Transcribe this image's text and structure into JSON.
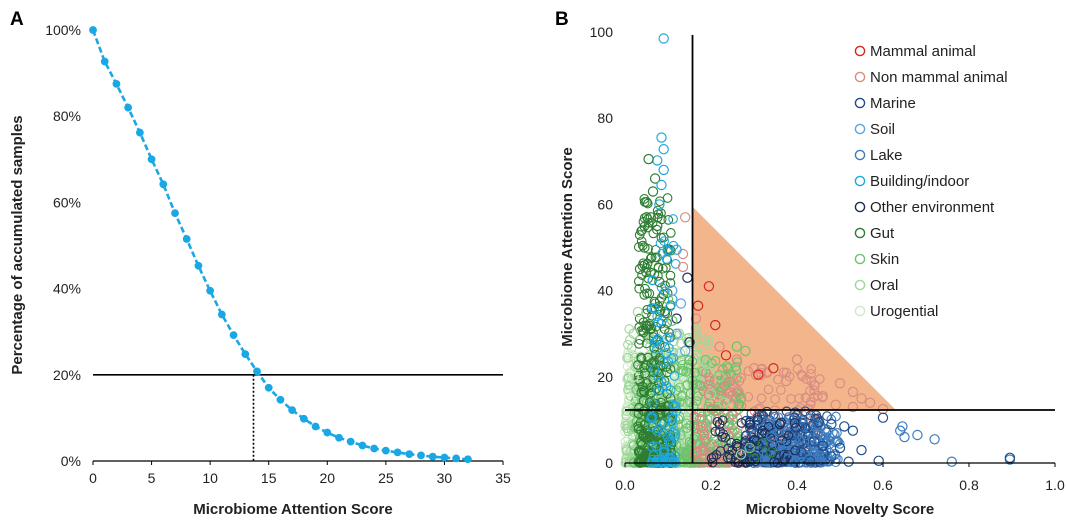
{
  "chart_data": [
    {
      "panel": "A",
      "type": "line",
      "xlabel": "Microbiome Attention Score",
      "ylabel": "Percentage of accumulated samples",
      "xlim": [
        0,
        35
      ],
      "ylim": [
        0,
        100
      ],
      "xticks": [
        "0",
        "5",
        "10",
        "15",
        "20",
        "25",
        "30",
        "35"
      ],
      "yticks": [
        "0%",
        "20%",
        "40%",
        "60%",
        "80%",
        "100%"
      ],
      "color": "#1aa7e6",
      "x": [
        0,
        1,
        2,
        3,
        4,
        5,
        6,
        7,
        8,
        9,
        10,
        11,
        12,
        13,
        14,
        15,
        16,
        17,
        18,
        19,
        20,
        21,
        22,
        23,
        24,
        25,
        26,
        27,
        28,
        29,
        30,
        31,
        32
      ],
      "y": [
        100,
        92.7,
        87.5,
        82.0,
        76.2,
        70.0,
        64.2,
        57.5,
        51.5,
        45.3,
        39.5,
        34.0,
        29.2,
        24.8,
        20.8,
        17.0,
        14.2,
        11.8,
        9.8,
        8.0,
        6.6,
        5.4,
        4.5,
        3.6,
        2.9,
        2.4,
        2.0,
        1.6,
        1.3,
        1.0,
        0.8,
        0.6,
        0.4
      ],
      "hline_y": 20,
      "vline_x": 13.7
    },
    {
      "panel": "B",
      "type": "scatter",
      "xlabel": "Microbiome Novelty Score",
      "ylabel": "Microbiome Attention Score",
      "xlim": [
        0,
        1
      ],
      "ylim": [
        0,
        100
      ],
      "xticks": [
        "0.0",
        "0.2",
        "0.4",
        "0.6",
        "0.8",
        "1.0"
      ],
      "yticks": [
        "0",
        "20",
        "40",
        "60",
        "80",
        "100"
      ],
      "vline_x": 0.157,
      "hline_y": 12.3,
      "triangle": [
        [
          0.157,
          59.5
        ],
        [
          0.157,
          12.3
        ],
        [
          0.63,
          12.3
        ]
      ],
      "triangle_color": "#f2ad7f",
      "legend_position": "top-right",
      "series": [
        {
          "name": "Mammal animal",
          "color": "#d62718"
        },
        {
          "name": "Non mammal animal",
          "color": "#d98c82"
        },
        {
          "name": "Marine",
          "color": "#1f4e8c"
        },
        {
          "name": "Soil",
          "color": "#5ba4df"
        },
        {
          "name": "Lake",
          "color": "#3d7cc0"
        },
        {
          "name": "Building/indoor",
          "color": "#1fa8e0"
        },
        {
          "name": "Other environment",
          "color": "#1b2f5a"
        },
        {
          "name": "Gut",
          "color": "#2e7d32"
        },
        {
          "name": "Skin",
          "color": "#6cc36c"
        },
        {
          "name": "Oral",
          "color": "#9fd89a"
        },
        {
          "name": "Urogential",
          "color": "#cdebc6"
        }
      ],
      "points": [
        {
          "series": "Building/indoor",
          "x": 0.09,
          "y": 98.5
        },
        {
          "series": "Building/indoor",
          "x": 0.085,
          "y": 75.5
        },
        {
          "series": "Building/indoor",
          "x": 0.09,
          "y": 72.8
        },
        {
          "series": "Building/indoor",
          "x": 0.075,
          "y": 70.2
        },
        {
          "series": "Gut",
          "x": 0.055,
          "y": 70.5
        },
        {
          "series": "Building/indoor",
          "x": 0.09,
          "y": 68.0
        },
        {
          "series": "Gut",
          "x": 0.07,
          "y": 66.0
        },
        {
          "series": "Gut",
          "x": 0.065,
          "y": 63.0
        },
        {
          "series": "Building/indoor",
          "x": 0.085,
          "y": 64.5
        },
        {
          "series": "Building/indoor",
          "x": 0.08,
          "y": 60.0
        },
        {
          "series": "Gut",
          "x": 0.05,
          "y": 60.5
        },
        {
          "series": "Gut",
          "x": 0.06,
          "y": 57.0
        },
        {
          "series": "Gut",
          "x": 0.075,
          "y": 55.0
        },
        {
          "series": "Non mammal animal",
          "x": 0.14,
          "y": 57.0
        },
        {
          "series": "Non mammal animal",
          "x": 0.135,
          "y": 48.5
        },
        {
          "series": "Non mammal animal",
          "x": 0.135,
          "y": 45.5
        },
        {
          "series": "Building/indoor",
          "x": 0.12,
          "y": 49.5
        },
        {
          "series": "Other environment",
          "x": 0.145,
          "y": 43.0
        },
        {
          "series": "Mammal animal",
          "x": 0.195,
          "y": 41.0
        },
        {
          "series": "Mammal animal",
          "x": 0.17,
          "y": 36.5
        },
        {
          "series": "Mammal animal",
          "x": 0.21,
          "y": 32.0
        },
        {
          "series": "Non mammal animal",
          "x": 0.165,
          "y": 33.5
        },
        {
          "series": "Non mammal animal",
          "x": 0.22,
          "y": 27.0
        },
        {
          "series": "Mammal animal",
          "x": 0.235,
          "y": 25.0
        },
        {
          "series": "Non mammal animal",
          "x": 0.26,
          "y": 24.0
        },
        {
          "series": "Non mammal animal",
          "x": 0.3,
          "y": 22.0
        },
        {
          "series": "Mammal animal",
          "x": 0.345,
          "y": 22.0
        },
        {
          "series": "Non mammal animal",
          "x": 0.4,
          "y": 24.0
        },
        {
          "series": "Mammal animal",
          "x": 0.31,
          "y": 20.5
        },
        {
          "series": "Non mammal animal",
          "x": 0.375,
          "y": 19.0
        },
        {
          "series": "Non mammal animal",
          "x": 0.44,
          "y": 18.0
        },
        {
          "series": "Non mammal animal",
          "x": 0.5,
          "y": 18.5
        },
        {
          "series": "Non mammal animal",
          "x": 0.53,
          "y": 16.5
        },
        {
          "series": "Non mammal animal",
          "x": 0.46,
          "y": 15.5
        },
        {
          "series": "Non mammal animal",
          "x": 0.55,
          "y": 15.0
        },
        {
          "series": "Non mammal animal",
          "x": 0.57,
          "y": 14.0
        },
        {
          "series": "Non mammal animal",
          "x": 0.49,
          "y": 13.5
        },
        {
          "series": "Non mammal animal",
          "x": 0.53,
          "y": 13.0
        },
        {
          "series": "Non mammal animal",
          "x": 0.6,
          "y": 12.5
        },
        {
          "series": "Marine",
          "x": 0.6,
          "y": 10.5
        },
        {
          "series": "Marine",
          "x": 0.45,
          "y": 9.5
        },
        {
          "series": "Marine",
          "x": 0.48,
          "y": 9.0
        },
        {
          "series": "Marine",
          "x": 0.51,
          "y": 8.5
        },
        {
          "series": "Marine",
          "x": 0.53,
          "y": 7.5
        },
        {
          "series": "Marine",
          "x": 0.42,
          "y": 8.0
        },
        {
          "series": "Marine",
          "x": 0.39,
          "y": 6.5
        },
        {
          "series": "Marine",
          "x": 0.44,
          "y": 5.0
        },
        {
          "series": "Marine",
          "x": 0.46,
          "y": 4.0
        },
        {
          "series": "Marine",
          "x": 0.5,
          "y": 3.5
        },
        {
          "series": "Marine",
          "x": 0.55,
          "y": 3.0
        },
        {
          "series": "Marine",
          "x": 0.41,
          "y": 2.5
        },
        {
          "series": "Marine",
          "x": 0.48,
          "y": 1.5
        },
        {
          "series": "Marine",
          "x": 0.43,
          "y": 0.5
        },
        {
          "series": "Marine",
          "x": 0.52,
          "y": 0.3
        },
        {
          "series": "Marine",
          "x": 0.59,
          "y": 0.5
        },
        {
          "series": "Lake",
          "x": 0.64,
          "y": 7.5
        },
        {
          "series": "Lake",
          "x": 0.645,
          "y": 8.5
        },
        {
          "series": "Lake",
          "x": 0.65,
          "y": 6.0
        },
        {
          "series": "Lake",
          "x": 0.68,
          "y": 6.5
        },
        {
          "series": "Lake",
          "x": 0.72,
          "y": 5.5
        },
        {
          "series": "Lake",
          "x": 0.76,
          "y": 0.3
        },
        {
          "series": "Lake",
          "x": 0.895,
          "y": 0.8
        },
        {
          "series": "Marine",
          "x": 0.895,
          "y": 1.2
        },
        {
          "series": "Lake",
          "x": 0.34,
          "y": 6.0
        },
        {
          "series": "Lake",
          "x": 0.36,
          "y": 4.0
        },
        {
          "series": "Lake",
          "x": 0.33,
          "y": 2.0
        },
        {
          "series": "Lake",
          "x": 0.38,
          "y": 1.0
        },
        {
          "series": "Soil",
          "x": 0.11,
          "y": 40.0
        },
        {
          "series": "Soil",
          "x": 0.13,
          "y": 37.0
        },
        {
          "series": "Soil",
          "x": 0.12,
          "y": 30.0
        },
        {
          "series": "Soil",
          "x": 0.14,
          "y": 26.0
        },
        {
          "series": "Other environment",
          "x": 0.12,
          "y": 33.5
        },
        {
          "series": "Other environment",
          "x": 0.15,
          "y": 28.0
        },
        {
          "series": "Other environment",
          "x": 0.31,
          "y": 4.0
        },
        {
          "series": "Other environment",
          "x": 0.36,
          "y": 9.0
        },
        {
          "series": "Skin",
          "x": 0.26,
          "y": 27.0
        },
        {
          "series": "Skin",
          "x": 0.28,
          "y": 26.0
        },
        {
          "series": "Skin",
          "x": 0.24,
          "y": 22.0
        },
        {
          "series": "Skin",
          "x": 0.23,
          "y": 18.0
        },
        {
          "series": "Skin",
          "x": 0.27,
          "y": 15.0
        },
        {
          "series": "Skin",
          "x": 0.21,
          "y": 12.0
        },
        {
          "series": "Skin",
          "x": 0.25,
          "y": 10.0
        },
        {
          "series": "Oral",
          "x": 0.19,
          "y": 23.0
        },
        {
          "series": "Oral",
          "x": 0.22,
          "y": 20.0
        },
        {
          "series": "Oral",
          "x": 0.2,
          "y": 16.0
        },
        {
          "series": "Oral",
          "x": 0.23,
          "y": 14.0
        },
        {
          "series": "Oral",
          "x": 0.02,
          "y": 30.0
        },
        {
          "series": "Oral",
          "x": 0.03,
          "y": 35.0
        },
        {
          "series": "Urogential",
          "x": 0.01,
          "y": 25.0
        },
        {
          "series": "Urogential",
          "x": 0.02,
          "y": 20.0
        },
        {
          "series": "Urogential",
          "x": 0.01,
          "y": 15.0
        },
        {
          "series": "Gut",
          "x": 0.32,
          "y": 4.5
        },
        {
          "series": "Gut",
          "x": 0.34,
          "y": 2.5
        },
        {
          "series": "Gut",
          "x": 0.3,
          "y": 1.0
        },
        {
          "series": "Skin",
          "x": 0.29,
          "y": 3.5
        },
        {
          "series": "Oral",
          "x": 0.27,
          "y": 2.0
        },
        {
          "series": "Gut",
          "x": 0.035,
          "y": 45.0
        },
        {
          "series": "Gut",
          "x": 0.045,
          "y": 50.0
        },
        {
          "series": "Gut",
          "x": 0.08,
          "y": 42.0
        },
        {
          "series": "Skin",
          "x": 0.1,
          "y": 38.0
        },
        {
          "series": "Skin",
          "x": 0.11,
          "y": 33.0
        }
      ]
    }
  ]
}
